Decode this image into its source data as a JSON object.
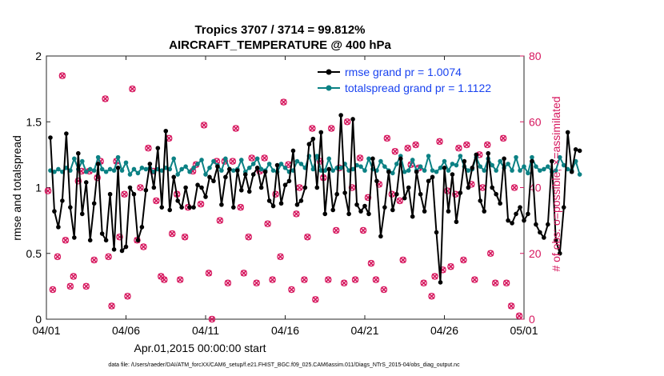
{
  "chart_data": {
    "type": "line",
    "title_line1": "Tropics 3707 / 3714 = 99.812%",
    "title_line2": "AIRCRAFT_TEMPERATURE @ 400 hPa",
    "xlabel": "Apr.01,2015 00:00:00 start",
    "ylabel_left": "rmse and totalspread",
    "ylabel_right": "# of obs: o=possible; ×=assimilated",
    "footnote": "data file: /Users/raeder/DAI/ATM_forcXX/CAM6_setup/f.e21.FHIST_BGC.f09_025.CAM6assim.011/Diags_NTrS_2015-04/obs_diag_output.nc",
    "xlim": [
      0,
      30
    ],
    "ylim_left": [
      0,
      2
    ],
    "ylim_right": [
      0,
      80
    ],
    "x_ticks": [
      {
        "v": 0,
        "label": "04/01"
      },
      {
        "v": 5,
        "label": "04/06"
      },
      {
        "v": 10,
        "label": "04/11"
      },
      {
        "v": 15,
        "label": "04/16"
      },
      {
        "v": 20,
        "label": "04/21"
      },
      {
        "v": 25,
        "label": "04/26"
      },
      {
        "v": 30,
        "label": "05/01"
      }
    ],
    "y_ticks_left": [
      {
        "v": 0,
        "label": "0"
      },
      {
        "v": 0.5,
        "label": "0.5"
      },
      {
        "v": 1,
        "label": "1"
      },
      {
        "v": 1.5,
        "label": "1.5"
      },
      {
        "v": 2,
        "label": "2"
      }
    ],
    "y_ticks_right": [
      {
        "v": 0,
        "label": "0"
      },
      {
        "v": 20,
        "label": "20"
      },
      {
        "v": 40,
        "label": "40"
      },
      {
        "v": 60,
        "label": "60"
      },
      {
        "v": 80,
        "label": "80"
      }
    ],
    "series": [
      {
        "name": "rmse",
        "legend_label": "rmse grand pr = 1.0074",
        "color": "#000000",
        "x_start": 0.25,
        "x_step": 0.25,
        "values": [
          1.38,
          0.82,
          0.7,
          0.9,
          1.41,
          0.85,
          0.62,
          1.26,
          0.8,
          1.04,
          0.6,
          0.88,
          1.18,
          0.65,
          0.6,
          0.95,
          0.53,
          1.15,
          0.52,
          0.55,
          1.0,
          0.95,
          0.6,
          0.7,
          0.98,
          1.18,
          1.0,
          1.3,
          0.85,
          1.43,
          0.83,
          1.08,
          0.9,
          0.85,
          1.0,
          0.85,
          0.85,
          1.02,
          1.0,
          0.93,
          1.08,
          1.05,
          1.16,
          0.87,
          1.08,
          1.14,
          0.85,
          1.13,
          0.98,
          1.1,
          0.97,
          1.1,
          1.15,
          1.0,
          1.12,
          0.9,
          0.86,
          1.17,
          0.88,
          1.02,
          1.05,
          1.28,
          0.87,
          0.9,
          1.0,
          1.33,
          1.37,
          1.0,
          1.42,
          0.8,
          1.14,
          0.83,
          0.95,
          1.55,
          0.96,
          0.8,
          1.52,
          0.87,
          0.82,
          0.86,
          0.8,
          1.22,
          1.05,
          0.63,
          0.85,
          1.12,
          0.83,
          0.95,
          1.22,
          0.92,
          1.0,
          0.78,
          1.12,
          0.95,
          0.82,
          1.05,
          1.08,
          0.66,
          0.28,
          1.15,
          0.82,
          1.1,
          0.74,
          0.96,
          1.2,
          1.0,
          1.15,
          1.25,
          0.9,
          0.82,
          1.26,
          1.0,
          0.95,
          0.88,
          1.22,
          0.75,
          0.73,
          0.8,
          0.85,
          0.75,
          0.8,
          1.2,
          0.72,
          0.66,
          0.62,
          0.72,
          1.2,
          0.6,
          0.5,
          0.85,
          1.42,
          1.12,
          1.29,
          1.28
        ]
      },
      {
        "name": "totalspread",
        "legend_label": "totalspread grand pr = 1.1122",
        "color": "#0b8184",
        "x_start": 0.25,
        "x_step": 0.25,
        "values": [
          1.13,
          1.12,
          1.14,
          1.12,
          1.15,
          1.13,
          1.22,
          1.14,
          1.2,
          1.12,
          1.14,
          1.13,
          1.23,
          1.14,
          1.12,
          1.14,
          1.13,
          1.23,
          1.13,
          1.19,
          1.1,
          1.14,
          1.11,
          1.15,
          1.14,
          1.15,
          1.12,
          1.14,
          1.13,
          1.15,
          1.14,
          1.22,
          1.1,
          1.14,
          1.16,
          1.12,
          1.15,
          1.18,
          1.21,
          1.1,
          1.15,
          1.2,
          1.17,
          1.13,
          1.22,
          1.14,
          1.13,
          1.14,
          1.21,
          1.12,
          1.15,
          1.18,
          1.22,
          1.14,
          1.13,
          1.18,
          1.13,
          1.12,
          1.18,
          1.15,
          1.12,
          1.13,
          1.2,
          1.18,
          1.15,
          1.24,
          1.14,
          1.24,
          1.13,
          1.13,
          1.22,
          1.13,
          1.15,
          1.15,
          1.18,
          1.13,
          1.14,
          1.17,
          1.16,
          1.13,
          1.22,
          1.14,
          1.13,
          1.2,
          1.16,
          1.13,
          1.11,
          1.18,
          1.24,
          1.12,
          1.13,
          1.21,
          1.13,
          1.16,
          1.13,
          1.24,
          1.13,
          1.12,
          1.15,
          1.2,
          1.13,
          1.18,
          1.17,
          1.24,
          1.16,
          1.13,
          1.14,
          1.23,
          1.16,
          1.13,
          1.22,
          1.17,
          1.13,
          1.2,
          1.15,
          1.18,
          1.13,
          1.23,
          1.13,
          1.16,
          1.11,
          1.23,
          1.16,
          1.13,
          1.14,
          1.16,
          1.12,
          1.13,
          1.23,
          1.17,
          1.14,
          1.13,
          1.2,
          1.1
        ]
      }
    ],
    "obs_counts": {
      "color": "#d6175e",
      "possible_marker": "o",
      "assimilated_marker": "×",
      "points": [
        [
          0.1,
          39
        ],
        [
          0.4,
          9
        ],
        [
          0.7,
          19
        ],
        [
          1.0,
          74
        ],
        [
          1.2,
          24
        ],
        [
          1.5,
          10
        ],
        [
          1.7,
          13
        ],
        [
          2.0,
          42
        ],
        [
          2.2,
          45
        ],
        [
          2.5,
          10
        ],
        [
          2.7,
          45
        ],
        [
          3.0,
          18
        ],
        [
          3.2,
          43
        ],
        [
          3.4,
          48
        ],
        [
          3.7,
          67
        ],
        [
          3.9,
          19
        ],
        [
          4.1,
          4
        ],
        [
          4.4,
          48
        ],
        [
          4.6,
          25
        ],
        [
          4.9,
          38
        ],
        [
          5.1,
          7
        ],
        [
          5.4,
          70
        ],
        [
          5.7,
          24
        ],
        [
          5.9,
          40
        ],
        [
          6.1,
          22
        ],
        [
          6.4,
          52
        ],
        [
          6.7,
          45
        ],
        [
          6.9,
          36
        ],
        [
          7.2,
          13
        ],
        [
          7.4,
          12
        ],
        [
          7.7,
          55
        ],
        [
          7.9,
          26
        ],
        [
          8.2,
          38
        ],
        [
          8.4,
          12
        ],
        [
          8.7,
          25
        ],
        [
          8.9,
          34
        ],
        [
          9.2,
          45
        ],
        [
          9.4,
          47
        ],
        [
          9.7,
          35
        ],
        [
          9.9,
          59
        ],
        [
          10.2,
          14
        ],
        [
          10.4,
          0
        ],
        [
          10.7,
          48
        ],
        [
          10.9,
          30
        ],
        [
          11.2,
          48
        ],
        [
          11.4,
          11
        ],
        [
          11.7,
          48
        ],
        [
          11.9,
          58
        ],
        [
          12.2,
          34
        ],
        [
          12.4,
          14
        ],
        [
          12.7,
          25
        ],
        [
          12.9,
          49
        ],
        [
          13.2,
          11
        ],
        [
          13.4,
          45
        ],
        [
          13.7,
          49
        ],
        [
          13.9,
          29
        ],
        [
          14.2,
          12
        ],
        [
          14.4,
          38
        ],
        [
          14.7,
          19
        ],
        [
          14.9,
          66
        ],
        [
          15.2,
          47
        ],
        [
          15.4,
          9
        ],
        [
          15.7,
          32
        ],
        [
          15.9,
          40
        ],
        [
          16.2,
          12
        ],
        [
          16.4,
          25
        ],
        [
          16.7,
          58
        ],
        [
          16.9,
          6
        ],
        [
          17.2,
          48
        ],
        [
          17.4,
          43
        ],
        [
          17.7,
          12
        ],
        [
          17.9,
          58
        ],
        [
          18.2,
          27
        ],
        [
          18.4,
          46
        ],
        [
          18.7,
          11
        ],
        [
          18.9,
          60
        ],
        [
          19.2,
          40
        ],
        [
          19.4,
          12
        ],
        [
          19.7,
          49
        ],
        [
          19.9,
          27
        ],
        [
          20.2,
          37
        ],
        [
          20.4,
          17
        ],
        [
          20.7,
          12
        ],
        [
          20.9,
          41
        ],
        [
          21.2,
          9
        ],
        [
          21.4,
          55
        ],
        [
          21.7,
          38
        ],
        [
          21.9,
          51
        ],
        [
          22.2,
          36
        ],
        [
          22.4,
          18
        ],
        [
          22.7,
          52
        ],
        [
          22.9,
          47
        ],
        [
          23.2,
          53
        ],
        [
          23.4,
          46
        ],
        [
          23.7,
          11
        ],
        [
          23.9,
          77
        ],
        [
          24.2,
          7
        ],
        [
          24.4,
          13
        ],
        [
          24.7,
          54
        ],
        [
          24.9,
          15
        ],
        [
          25.2,
          39
        ],
        [
          25.4,
          16
        ],
        [
          25.7,
          38
        ],
        [
          25.9,
          52
        ],
        [
          26.2,
          18
        ],
        [
          26.4,
          53
        ],
        [
          26.7,
          41
        ],
        [
          26.9,
          12
        ],
        [
          27.2,
          50
        ],
        [
          27.4,
          40
        ],
        [
          27.7,
          53
        ],
        [
          27.9,
          20
        ],
        [
          28.2,
          11
        ],
        [
          28.4,
          70
        ],
        [
          28.7,
          55
        ],
        [
          28.9,
          11
        ],
        [
          29.2,
          4
        ],
        [
          29.4,
          40
        ],
        [
          29.7,
          1
        ]
      ]
    }
  }
}
